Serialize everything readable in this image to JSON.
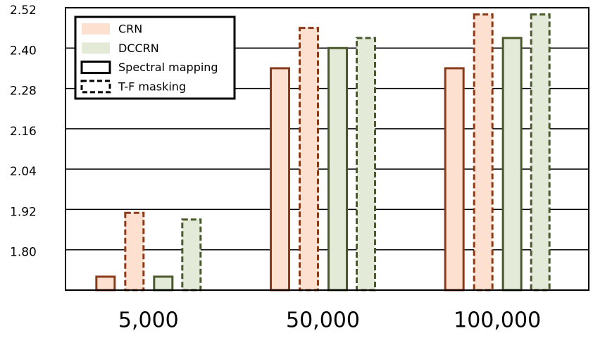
{
  "chart_data": {
    "type": "grouped-bar",
    "categories": [
      "5,000",
      "50,000",
      "100,000"
    ],
    "series": [
      {
        "fill": "#fde0d0",
        "stroke": "#8b3a1a",
        "dashed": false,
        "values": [
          1.72,
          2.34,
          2.34
        ]
      },
      {
        "fill": "#fde0d0",
        "stroke": "#8b3a1a",
        "dashed": true,
        "values": [
          1.91,
          2.46,
          2.5
        ]
      },
      {
        "fill": "#e3ebd8",
        "stroke": "#4a5a2a",
        "dashed": false,
        "values": [
          1.72,
          2.4,
          2.43
        ]
      },
      {
        "fill": "#e3ebd8",
        "stroke": "#4a5a2a",
        "dashed": true,
        "values": [
          1.89,
          2.43,
          2.5
        ]
      }
    ],
    "legend": [
      {
        "label": "CRN",
        "fill": "#fde0d0"
      },
      {
        "label": "DCCRN",
        "fill": "#e3ebd8"
      },
      {
        "label": "Spectral mapping",
        "dashed": false
      },
      {
        "label": "T-F masking",
        "dashed": true
      }
    ],
    "ylim": [
      1.68,
      2.52
    ],
    "yticks": [
      {
        "value": 1.8,
        "label": "1.80"
      },
      1.92,
      2.04,
      2.16,
      2.28,
      {
        "value": 2.4,
        "label": "2.40"
      },
      2.52
    ],
    "grid": true
  }
}
